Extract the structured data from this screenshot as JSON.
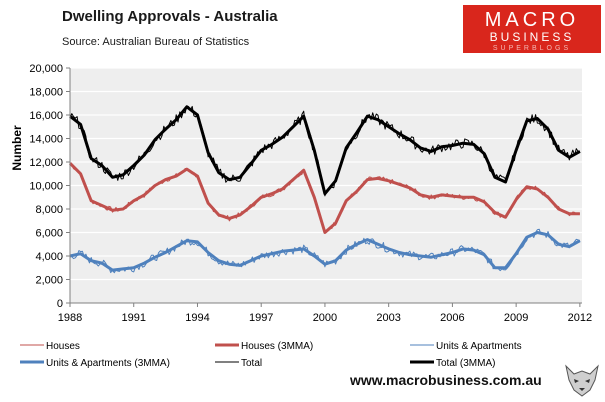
{
  "header": {
    "title": "Dwelling Approvals - Australia",
    "source": "Source:  Australian Bureau of Statistics"
  },
  "logo": {
    "line1": "MACRO",
    "line2": "BUSINESS",
    "line3": "SUPERBLOGS"
  },
  "footer": {
    "website": "www.macrobusiness.com.au"
  },
  "colors": {
    "houses": "#c0504d",
    "units": "#4f81bd",
    "total": "#000000",
    "plot_bg": "#eeeeee",
    "grid": "#ffffff"
  },
  "chart_data": {
    "type": "line",
    "title": "Dwelling Approvals - Australia",
    "xlabel": "",
    "ylabel": "Number",
    "xlim": [
      1988.0,
      2012.1
    ],
    "ylim": [
      0,
      20000
    ],
    "x_ticks": [
      1988,
      1991,
      1994,
      1997,
      2000,
      2003,
      2006,
      2009,
      2012
    ],
    "y_ticks": [
      0,
      2000,
      4000,
      6000,
      8000,
      10000,
      12000,
      14000,
      16000,
      18000,
      20000
    ],
    "y_tick_labels": [
      "0",
      "2,000",
      "4,000",
      "6,000",
      "8,000",
      "10,000",
      "12,000",
      "14,000",
      "16,000",
      "18,000",
      "20,000"
    ],
    "grid": true,
    "legend_position": "bottom",
    "legend": [
      "Houses",
      "Houses (3MMA)",
      "Units & Apartments",
      "Units & Apartments (3MMA)",
      "Total",
      "Total (3MMA)"
    ],
    "x": [
      1988.0,
      1988.5,
      1989.0,
      1989.5,
      1990.0,
      1990.5,
      1991.0,
      1991.5,
      1992.0,
      1992.5,
      1993.0,
      1993.5,
      1994.0,
      1994.5,
      1995.0,
      1995.5,
      1996.0,
      1996.5,
      1997.0,
      1997.5,
      1998.0,
      1998.5,
      1999.0,
      1999.5,
      2000.0,
      2000.5,
      2001.0,
      2001.5,
      2002.0,
      2002.5,
      2003.0,
      2003.5,
      2004.0,
      2004.5,
      2005.0,
      2005.5,
      2006.0,
      2006.5,
      2007.0,
      2007.5,
      2008.0,
      2008.5,
      2009.0,
      2009.5,
      2010.0,
      2010.5,
      2011.0,
      2011.5,
      2012.0
    ],
    "series": [
      {
        "name": "Houses",
        "color": "#c0504d",
        "width": 1,
        "noise": 220,
        "values": [
          11900,
          11000,
          8700,
          8300,
          7900,
          8000,
          8700,
          9200,
          10000,
          10500,
          10800,
          11400,
          10800,
          8500,
          7500,
          7200,
          7500,
          8200,
          9000,
          9300,
          9700,
          10500,
          11300,
          9000,
          6000,
          6800,
          8700,
          9500,
          10500,
          10600,
          10400,
          10100,
          9800,
          9200,
          9000,
          9200,
          9100,
          9000,
          9000,
          8600,
          7700,
          7300,
          8800,
          9900,
          9700,
          9000,
          8000,
          7600,
          7600
        ]
      },
      {
        "name": "Houses (3MMA)",
        "color": "#c0504d",
        "width": 3,
        "noise": 0,
        "values": [
          11900,
          11000,
          8700,
          8300,
          7900,
          8000,
          8700,
          9200,
          10000,
          10500,
          10800,
          11400,
          10800,
          8500,
          7500,
          7200,
          7500,
          8200,
          9000,
          9300,
          9700,
          10500,
          11300,
          9000,
          6000,
          6800,
          8700,
          9500,
          10500,
          10600,
          10400,
          10100,
          9800,
          9200,
          9000,
          9200,
          9100,
          9000,
          9000,
          8600,
          7700,
          7300,
          8800,
          9900,
          9700,
          9000,
          8000,
          7600,
          7600
        ]
      },
      {
        "name": "Units & Apartments",
        "color": "#4f81bd",
        "width": 1,
        "noise": 350,
        "values": [
          4000,
          4200,
          3600,
          3400,
          2800,
          2900,
          3000,
          3400,
          3900,
          4300,
          4800,
          5300,
          5200,
          4300,
          3600,
          3300,
          3200,
          3600,
          4000,
          4200,
          4400,
          4500,
          4600,
          4000,
          3300,
          3600,
          4500,
          5000,
          5400,
          5000,
          4600,
          4300,
          4100,
          4000,
          3900,
          4100,
          4300,
          4600,
          4500,
          4100,
          3000,
          3000,
          4200,
          5600,
          6000,
          5800,
          5000,
          4800,
          5300
        ]
      },
      {
        "name": "Units & Apartments (3MMA)",
        "color": "#4f81bd",
        "width": 3,
        "noise": 0,
        "values": [
          4000,
          4200,
          3600,
          3400,
          2800,
          2900,
          3000,
          3400,
          3900,
          4300,
          4800,
          5300,
          5200,
          4300,
          3600,
          3300,
          3200,
          3600,
          4000,
          4200,
          4400,
          4500,
          4600,
          4000,
          3300,
          3600,
          4500,
          5000,
          5400,
          5000,
          4600,
          4300,
          4100,
          4000,
          3900,
          4100,
          4300,
          4600,
          4500,
          4100,
          3000,
          3000,
          4200,
          5600,
          6000,
          5800,
          5000,
          4800,
          5300
        ]
      },
      {
        "name": "Total",
        "color": "#000000",
        "width": 1,
        "noise": 450,
        "values": [
          15900,
          15200,
          12300,
          11700,
          10700,
          10900,
          11700,
          12600,
          13900,
          14800,
          15600,
          16700,
          16000,
          12800,
          11100,
          10500,
          10700,
          11800,
          13000,
          13500,
          14100,
          15000,
          15900,
          13000,
          9300,
          10400,
          13200,
          14500,
          15900,
          15600,
          15000,
          14400,
          13900,
          13200,
          12900,
          13300,
          13400,
          13600,
          13500,
          12700,
          10700,
          10300,
          13000,
          15500,
          15700,
          14800,
          13000,
          12400,
          12900
        ]
      },
      {
        "name": "Total (3MMA)",
        "color": "#000000",
        "width": 3,
        "noise": 0,
        "values": [
          15900,
          15200,
          12300,
          11700,
          10700,
          10900,
          11700,
          12600,
          13900,
          14800,
          15600,
          16700,
          16000,
          12800,
          11100,
          10500,
          10700,
          11800,
          13000,
          13500,
          14100,
          15000,
          15900,
          13000,
          9300,
          10400,
          13200,
          14500,
          15900,
          15600,
          15000,
          14400,
          13900,
          13200,
          12900,
          13300,
          13400,
          13600,
          13500,
          12700,
          10700,
          10300,
          13000,
          15500,
          15700,
          14800,
          13000,
          12400,
          12900
        ]
      }
    ]
  }
}
